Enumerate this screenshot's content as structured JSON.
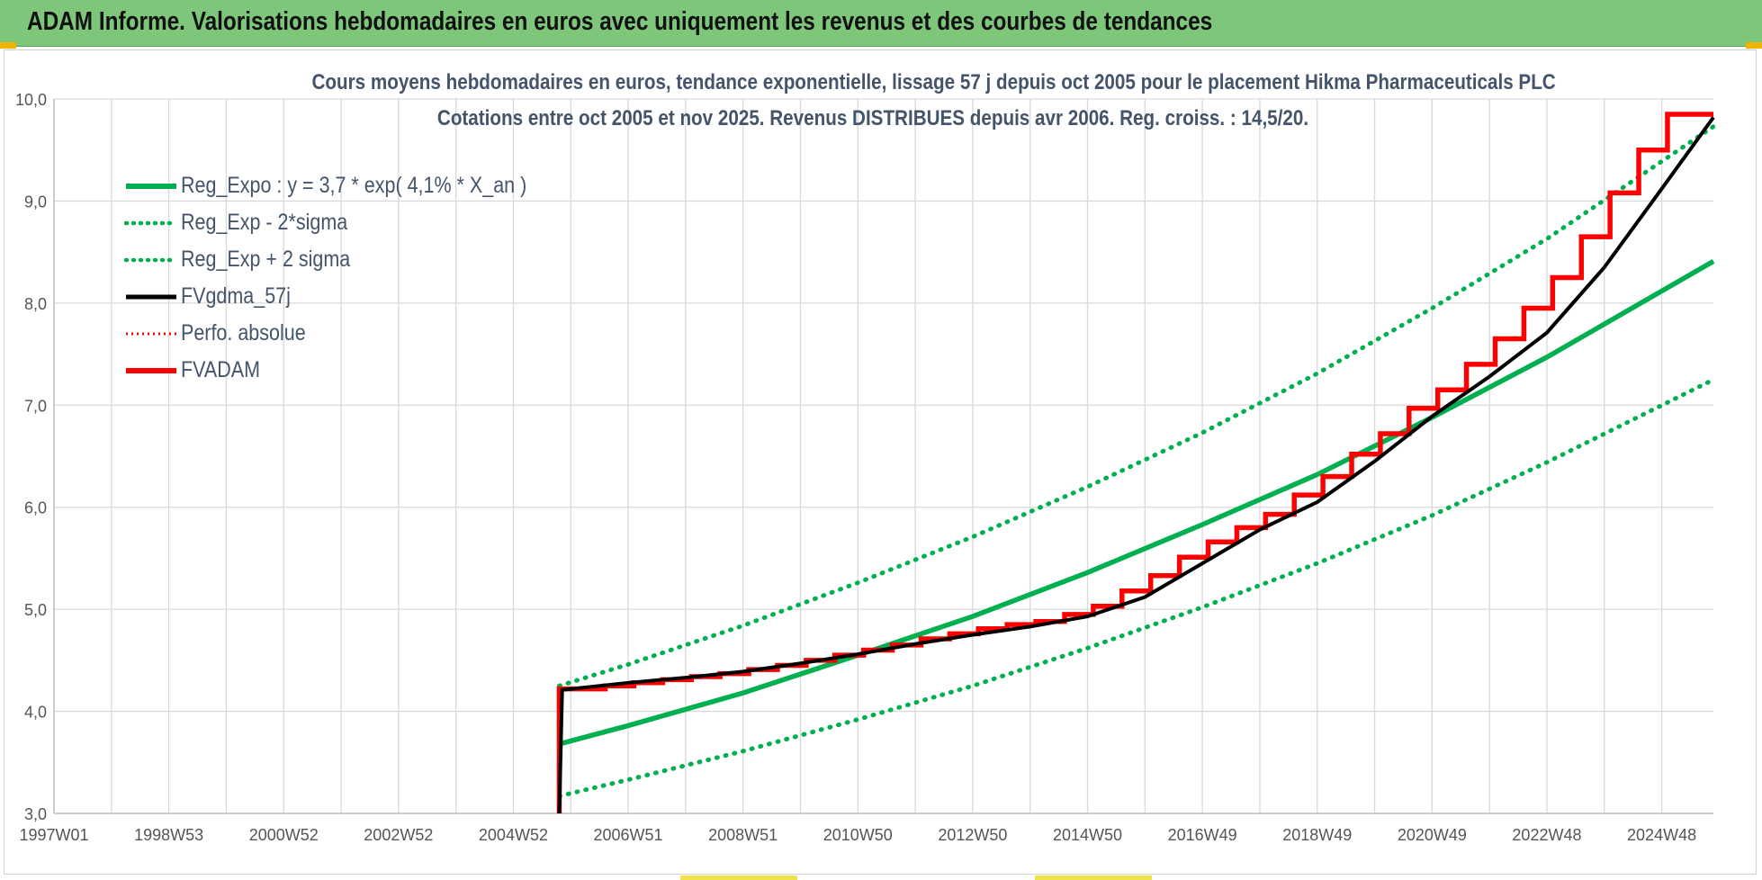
{
  "banner": {
    "title": "ADAM Informe. Valorisations hebdomadaires en euros avec uniquement les revenus et des courbes de tendances"
  },
  "colors": {
    "banner": "#7dc67a",
    "trend": "#00b050",
    "fvgdma": "#000000",
    "perfo": "#ff0000",
    "fvadam": "#ff0000",
    "title_text": "#44546a",
    "grid": "#d9d9d9"
  },
  "chart_data": {
    "type": "line",
    "title": "Cours moyens hebdomadaires en euros, tendance exponentielle, lissage 57 j depuis oct 2005 pour le placement Hikma Pharmaceuticals PLC",
    "subtitle": "Cotations entre oct 2005 et nov 2025. Revenus DISTRIBUES depuis avr 2006. Reg. croiss. : 14,5/20.",
    "xlabel": "",
    "ylabel": "",
    "x_range": [
      1997.0,
      2025.9
    ],
    "ylim": [
      3.0,
      10.0
    ],
    "y_ticks": [
      3.0,
      4.0,
      5.0,
      6.0,
      7.0,
      8.0,
      9.0,
      10.0
    ],
    "y_tick_labels": [
      "3,0",
      "4,0",
      "5,0",
      "6,0",
      "7,0",
      "8,0",
      "9,0",
      "10,0"
    ],
    "x_ticks": [
      1997.0,
      1999.0,
      2001.0,
      2003.0,
      2005.0,
      2007.0,
      2009.0,
      2011.0,
      2013.0,
      2015.0,
      2017.0,
      2019.0,
      2021.0,
      2023.0,
      2025.0
    ],
    "x_tick_labels": [
      "1997W01",
      "1998W53",
      "2000W52",
      "2002W52",
      "2004W52",
      "2006W51",
      "2008W51",
      "2010W50",
      "2012W50",
      "2014W50",
      "2016W49",
      "2018W49",
      "2020W49",
      "2022W48",
      "2024W48"
    ],
    "grid": true,
    "legend_position": "top-left",
    "series": [
      {
        "name": "Reg_Expo : y = 3,7 * exp( 4,1% *  X_an )",
        "style": "solid",
        "color": "#00b050",
        "x": [
          2005.8,
          2007.0,
          2009.0,
          2011.0,
          2013.0,
          2015.0,
          2017.0,
          2019.0,
          2021.0,
          2023.0,
          2025.9
        ],
        "y": [
          3.68,
          3.86,
          4.18,
          4.55,
          4.93,
          5.36,
          5.83,
          6.32,
          6.88,
          7.47,
          8.41
        ]
      },
      {
        "name": "Reg_Exp - 2*sigma",
        "style": "dotted",
        "color": "#00b050",
        "x": [
          2005.8,
          2007.0,
          2009.0,
          2011.0,
          2013.0,
          2015.0,
          2017.0,
          2019.0,
          2021.0,
          2023.0,
          2025.9
        ],
        "y": [
          3.17,
          3.33,
          3.61,
          3.92,
          4.25,
          4.62,
          5.02,
          5.45,
          5.92,
          6.44,
          7.25
        ]
      },
      {
        "name": "Reg_Exp + 2 sigma",
        "style": "dotted",
        "color": "#00b050",
        "x": [
          2005.8,
          2007.0,
          2009.0,
          2011.0,
          2013.0,
          2015.0,
          2017.0,
          2019.0,
          2021.0,
          2023.0,
          2025.9
        ],
        "y": [
          4.25,
          4.46,
          4.84,
          5.26,
          5.71,
          6.2,
          6.73,
          7.31,
          7.95,
          8.63,
          9.73
        ]
      },
      {
        "name": "FVgdma_57j",
        "style": "solid",
        "color": "#000000",
        "x": [
          2005.8,
          2005.85,
          2007.0,
          2008.0,
          2009.0,
          2010.0,
          2011.0,
          2012.0,
          2013.0,
          2014.0,
          2015.0,
          2016.0,
          2017.0,
          2018.0,
          2019.0,
          2020.0,
          2021.0,
          2022.0,
          2023.0,
          2024.0,
          2025.0,
          2025.9
        ],
        "y": [
          3.0,
          4.21,
          4.28,
          4.33,
          4.39,
          4.47,
          4.56,
          4.66,
          4.75,
          4.83,
          4.93,
          5.12,
          5.45,
          5.78,
          6.05,
          6.45,
          6.89,
          7.28,
          7.71,
          8.35,
          9.12,
          9.82
        ]
      },
      {
        "name": "Perfo. absolue",
        "style": "dotted",
        "color": "#ff0000",
        "x": [],
        "y": []
      },
      {
        "name": "FVADAM",
        "style": "step",
        "color": "#ff0000",
        "x": [
          2005.8,
          2005.8,
          2006.6,
          2007.1,
          2007.6,
          2008.1,
          2008.6,
          2009.1,
          2009.6,
          2010.1,
          2010.6,
          2011.1,
          2011.6,
          2012.1,
          2012.6,
          2013.1,
          2013.6,
          2014.1,
          2014.6,
          2015.1,
          2015.6,
          2016.1,
          2016.6,
          2017.1,
          2017.6,
          2018.1,
          2018.6,
          2019.1,
          2019.6,
          2020.1,
          2020.6,
          2021.1,
          2021.6,
          2022.1,
          2022.6,
          2023.1,
          2023.6,
          2024.1,
          2024.6,
          2025.1,
          2025.6,
          2025.9
        ],
        "y": [
          3.0,
          4.22,
          4.25,
          4.28,
          4.31,
          4.34,
          4.37,
          4.41,
          4.45,
          4.5,
          4.55,
          4.6,
          4.65,
          4.71,
          4.76,
          4.81,
          4.85,
          4.88,
          4.95,
          5.03,
          5.18,
          5.33,
          5.51,
          5.66,
          5.8,
          5.93,
          6.12,
          6.3,
          6.52,
          6.72,
          6.97,
          7.15,
          7.4,
          7.65,
          7.95,
          8.25,
          8.65,
          9.08,
          9.5,
          9.85,
          9.85,
          9.85
        ]
      }
    ]
  }
}
